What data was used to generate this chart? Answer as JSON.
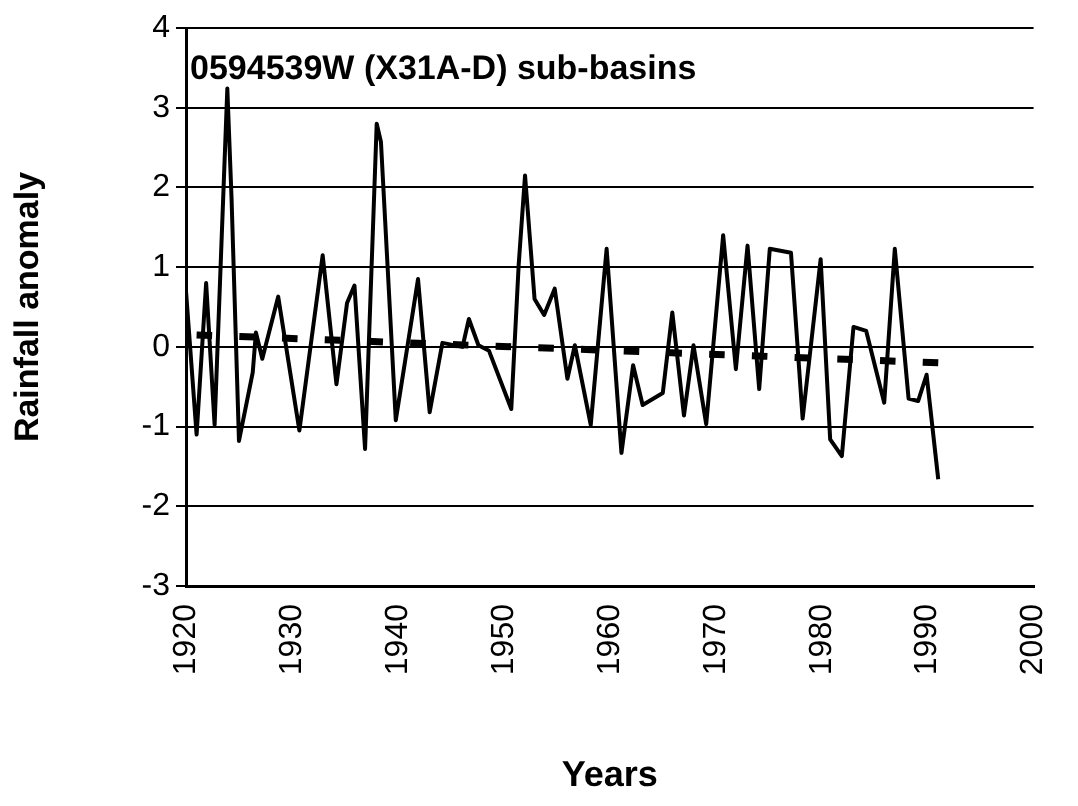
{
  "chart_data": {
    "type": "line",
    "title": "0594539W (X31A-D) sub-basins",
    "xlabel": "Years",
    "ylabel": "Rainfall anomaly",
    "xlim": [
      1920,
      2000
    ],
    "xticks": [
      1920,
      1930,
      1940,
      1950,
      1960,
      1970,
      1980,
      1990,
      2000
    ],
    "ylim": [
      -3,
      4
    ],
    "yticks": [
      -3,
      -2,
      -1,
      0,
      1,
      2,
      3,
      4
    ],
    "grid": "y",
    "legend": false,
    "marker": "none",
    "series": [
      {
        "color": "#000000",
        "line_style": "solid",
        "x": [
          1920.0,
          1921.0,
          1921.9,
          1922.7,
          1923.9,
          1924.3,
          1925.0,
          1926.3,
          1926.6,
          1927.2,
          1928.7,
          1930.7,
          1932.9,
          1934.2,
          1935.2,
          1935.9,
          1936.9,
          1938.0,
          1938.4,
          1939.8,
          1941.9,
          1943.0,
          1944.2,
          1946.1,
          1946.7,
          1947.6,
          1948.6,
          1950.7,
          1951.4,
          1952.0,
          1952.9,
          1953.8,
          1954.8,
          1956.0,
          1956.7,
          1958.2,
          1959.7,
          1961.1,
          1962.2,
          1963.1,
          1965.0,
          1965.9,
          1967.0,
          1967.9,
          1969.1,
          1970.7,
          1971.9,
          1973.0,
          1974.1,
          1975.1,
          1977.1,
          1978.2,
          1979.9,
          1980.8,
          1981.9,
          1983.0,
          1984.2,
          1985.9,
          1986.9,
          1988.2,
          1989.1,
          1989.9,
          1991.0
        ],
        "values": [
          0.7,
          -1.1,
          0.8,
          -0.98,
          3.24,
          1.86,
          -1.18,
          -0.32,
          0.18,
          -0.15,
          0.63,
          -1.05,
          1.15,
          -0.47,
          0.55,
          0.77,
          -1.28,
          2.8,
          2.57,
          -0.92,
          0.85,
          -0.82,
          0.05,
          0.0,
          0.35,
          0.02,
          -0.05,
          -0.78,
          1.03,
          2.15,
          0.6,
          0.4,
          0.73,
          -0.4,
          0.02,
          -0.98,
          1.23,
          -1.33,
          -0.23,
          -0.73,
          -0.58,
          0.43,
          -0.86,
          0.02,
          -0.97,
          1.4,
          -0.28,
          1.27,
          -0.53,
          1.23,
          1.18,
          -0.9,
          1.1,
          -1.16,
          -1.37,
          0.25,
          0.2,
          -0.7,
          1.23,
          -0.65,
          -0.68,
          -0.35,
          -1.66
        ]
      },
      {
        "color": "#000000",
        "line_style": "dashed",
        "x": [
          1921,
          1991
        ],
        "values": [
          0.15,
          -0.2
        ]
      }
    ]
  }
}
